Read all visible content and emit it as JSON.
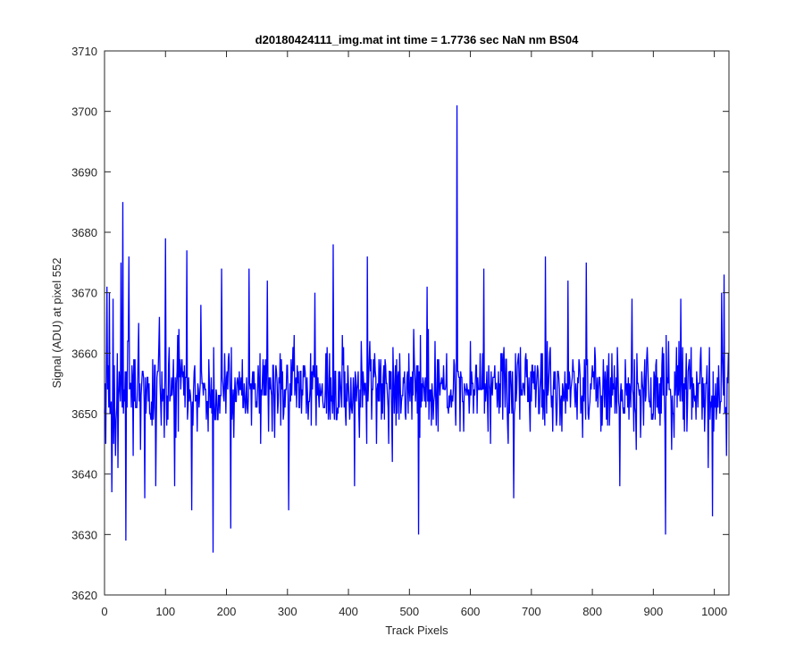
{
  "chart_data": {
    "type": "line",
    "title": "d20180424111_img.mat int time = 1.7736 sec  NaN nm BS04",
    "xlabel": "Track Pixels",
    "ylabel": "Signal (ADU) at pixel 552",
    "xlim": [
      0,
      1024
    ],
    "ylim": [
      3620,
      3710
    ],
    "xticks": [
      0,
      100,
      200,
      300,
      400,
      500,
      600,
      700,
      800,
      900,
      1000
    ],
    "yticks": [
      3620,
      3630,
      3640,
      3650,
      3660,
      3670,
      3680,
      3690,
      3700,
      3710
    ],
    "grid": false,
    "series": [
      {
        "color": "#0000ff",
        "n_points": 1024,
        "baseline": 3654,
        "noise_range": [
          3643,
          3665
        ],
        "spikes": [
          {
            "x": 2,
            "y": 3645
          },
          {
            "x": 4,
            "y": 3671
          },
          {
            "x": 8,
            "y": 3670
          },
          {
            "x": 12,
            "y": 3637
          },
          {
            "x": 14,
            "y": 3669
          },
          {
            "x": 18,
            "y": 3643
          },
          {
            "x": 22,
            "y": 3641
          },
          {
            "x": 27,
            "y": 3675
          },
          {
            "x": 30,
            "y": 3685
          },
          {
            "x": 35,
            "y": 3629
          },
          {
            "x": 40,
            "y": 3676
          },
          {
            "x": 47,
            "y": 3643
          },
          {
            "x": 56,
            "y": 3665
          },
          {
            "x": 66,
            "y": 3636
          },
          {
            "x": 84,
            "y": 3638
          },
          {
            "x": 90,
            "y": 3666
          },
          {
            "x": 100,
            "y": 3679
          },
          {
            "x": 115,
            "y": 3638
          },
          {
            "x": 135,
            "y": 3677
          },
          {
            "x": 143,
            "y": 3634
          },
          {
            "x": 158,
            "y": 3668
          },
          {
            "x": 178,
            "y": 3627
          },
          {
            "x": 192,
            "y": 3674
          },
          {
            "x": 207,
            "y": 3631
          },
          {
            "x": 237,
            "y": 3674
          },
          {
            "x": 267,
            "y": 3672
          },
          {
            "x": 302,
            "y": 3634
          },
          {
            "x": 345,
            "y": 3670
          },
          {
            "x": 375,
            "y": 3678
          },
          {
            "x": 410,
            "y": 3638
          },
          {
            "x": 431,
            "y": 3676
          },
          {
            "x": 472,
            "y": 3642
          },
          {
            "x": 515,
            "y": 3630
          },
          {
            "x": 529,
            "y": 3671
          },
          {
            "x": 578,
            "y": 3701
          },
          {
            "x": 600,
            "y": 3662
          },
          {
            "x": 622,
            "y": 3674
          },
          {
            "x": 671,
            "y": 3636
          },
          {
            "x": 723,
            "y": 3676
          },
          {
            "x": 760,
            "y": 3672
          },
          {
            "x": 790,
            "y": 3675
          },
          {
            "x": 845,
            "y": 3638
          },
          {
            "x": 865,
            "y": 3669
          },
          {
            "x": 920,
            "y": 3630
          },
          {
            "x": 945,
            "y": 3669
          },
          {
            "x": 990,
            "y": 3641
          },
          {
            "x": 997,
            "y": 3633
          },
          {
            "x": 1012,
            "y": 3670
          },
          {
            "x": 1016,
            "y": 3673
          },
          {
            "x": 1020,
            "y": 3643
          }
        ]
      }
    ]
  }
}
